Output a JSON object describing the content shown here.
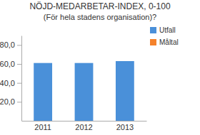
{
  "chart_data": {
    "type": "bar",
    "title": "NÖJD-MEDARBETAR-INDEX, 0-100",
    "subtitle": "(För hela stadens organisation)?",
    "categories": [
      "2011",
      "2012",
      "2013"
    ],
    "series": [
      {
        "name": "Utfall",
        "color": "#4a90d9",
        "values": [
          61,
          61,
          63
        ]
      },
      {
        "name": "Måltal",
        "color": "#f5822a",
        "values": [
          null,
          null,
          null
        ]
      }
    ],
    "ylim": [
      0,
      90
    ],
    "yticks": [
      {
        "value": 20,
        "label": "20,0"
      },
      {
        "value": 40,
        "label": "40,0"
      },
      {
        "value": 60,
        "label": "60,0"
      },
      {
        "value": 80,
        "label": "80,0"
      }
    ],
    "grid": false,
    "legend": "right"
  }
}
